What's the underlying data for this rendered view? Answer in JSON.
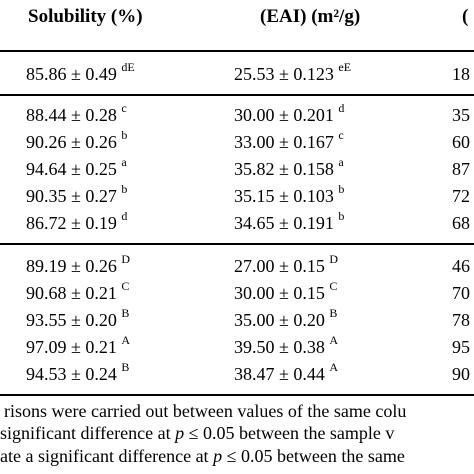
{
  "header": {
    "col_solubility": "Solubility (%)",
    "col_eai": "(EAI) (m²/g)",
    "col_third": "("
  },
  "rows": [
    {
      "sol": "85.86 ± 0.49",
      "sol_sup": "dE",
      "eai": "25.53 ± 0.123",
      "eai_sup": "eE",
      "third": "18"
    },
    {
      "sol": "88.44 ± 0.28",
      "sol_sup": "c",
      "eai": "30.00 ± 0.201",
      "eai_sup": "d",
      "third": "35"
    },
    {
      "sol": "90.26 ± 0.26",
      "sol_sup": "b",
      "eai": "33.00 ± 0.167",
      "eai_sup": "c",
      "third": "60"
    },
    {
      "sol": "94.64 ± 0.25",
      "sol_sup": "a",
      "eai": "35.82 ± 0.158",
      "eai_sup": "a",
      "third": "87"
    },
    {
      "sol": "90.35 ± 0.27",
      "sol_sup": "b",
      "eai": "35.15 ± 0.103",
      "eai_sup": "b",
      "third": "72"
    },
    {
      "sol": "86.72 ± 0.19",
      "sol_sup": "d",
      "eai": "34.65 ± 0.191",
      "eai_sup": "b",
      "third": "68"
    },
    {
      "sol": "89.19 ± 0.26",
      "sol_sup": "D",
      "eai": "27.00 ± 0.15",
      "eai_sup": "D",
      "third": "46"
    },
    {
      "sol": "90.68 ± 0.21",
      "sol_sup": "C",
      "eai": "30.00 ± 0.15",
      "eai_sup": "C",
      "third": "70"
    },
    {
      "sol": "93.55 ± 0.20",
      "sol_sup": "B",
      "eai": "35.00 ± 0.20",
      "eai_sup": "B",
      "third": "78"
    },
    {
      "sol": "97.09 ± 0.21",
      "sol_sup": "A",
      "eai": "39.50 ± 0.38",
      "eai_sup": "A",
      "third": "95"
    },
    {
      "sol": "94.53 ± 0.24",
      "sol_sup": "B",
      "eai": "38.47 ± 0.44",
      "eai_sup": "A",
      "third": "90"
    }
  ],
  "notes": {
    "line1": "risons were carried out between values of the same colu",
    "line2_pre": "significant difference at ",
    "line2_p": "p",
    "line2_post": " ≤ 0.05 between the sample v",
    "line3_pre": "ate a significant difference at ",
    "line3_p": "p",
    "line3_post": " ≤ 0.05 between the same"
  }
}
